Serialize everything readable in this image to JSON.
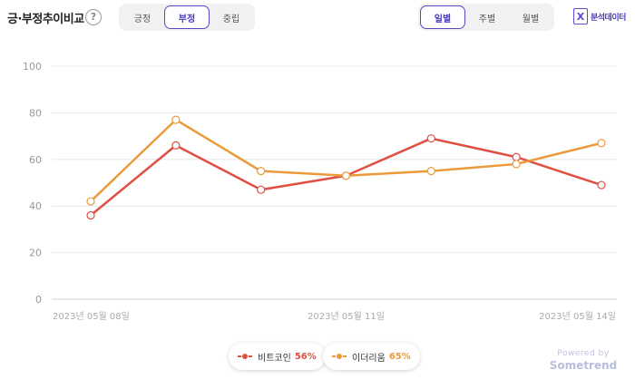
{
  "header": {
    "title": "긍·부정추이비교",
    "help_glyph": "?",
    "sentiment_tabs": [
      {
        "label": "긍정",
        "active": false
      },
      {
        "label": "부정",
        "active": true
      },
      {
        "label": "중립",
        "active": false
      }
    ],
    "period_tabs": [
      {
        "label": "일별",
        "active": true
      },
      {
        "label": "주별",
        "active": false
      },
      {
        "label": "월별",
        "active": false
      }
    ],
    "brand_icon": "X",
    "brand_label": "분석데이터",
    "accent_color": "#5748c9"
  },
  "chart_data": {
    "type": "line",
    "x": [
      "2023-05-08",
      "2023-05-09",
      "2023-05-10",
      "2023-05-11",
      "2023-05-12",
      "2023-05-13",
      "2023-05-14"
    ],
    "x_tick_labels": [
      {
        "index": 0,
        "label": "2023년 05월 08일"
      },
      {
        "index": 3,
        "label": "2023년 05월 11일"
      },
      {
        "index": 6,
        "label": "2023년 05월 14일"
      }
    ],
    "ylim": [
      0,
      100
    ],
    "y_ticks": [
      0,
      20,
      40,
      60,
      80,
      100
    ],
    "grid": true,
    "series": [
      {
        "name": "비트코인",
        "color": "#e04f43",
        "values": [
          36,
          66,
          47,
          53,
          69,
          61,
          49
        ]
      },
      {
        "name": "이더리움",
        "color": "#eb9a3a",
        "values": [
          42,
          77,
          55,
          53,
          55,
          58,
          67
        ]
      }
    ]
  },
  "legend": [
    {
      "name": "비트코인",
      "percent": "56%",
      "color": "#e04f43"
    },
    {
      "name": "이더리움",
      "percent": "65%",
      "color": "#eb9a3a"
    }
  ],
  "footer": {
    "powered_by": "Powered by",
    "brand": "Sometrend"
  }
}
